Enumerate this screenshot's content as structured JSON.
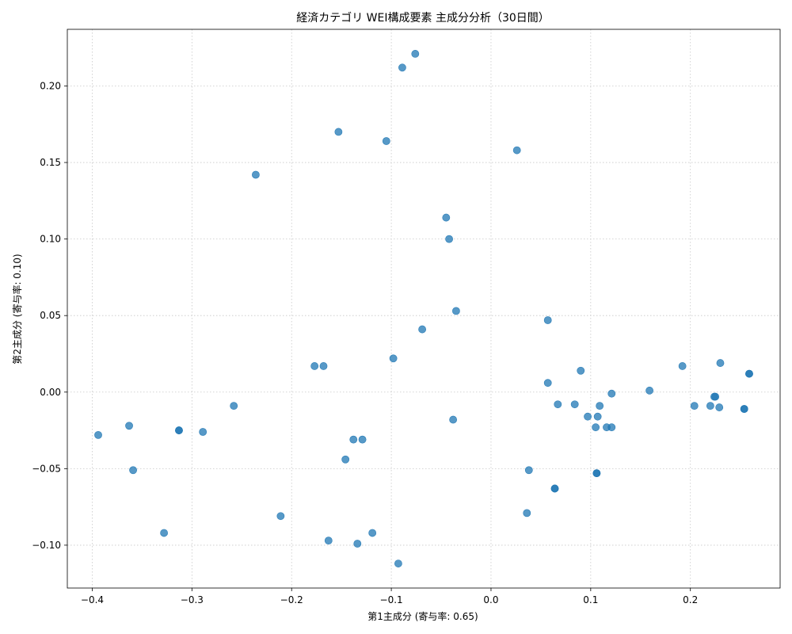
{
  "chart_data": {
    "type": "scatter",
    "title": "経済カテゴリ WEI構成要素 主成分分析（30日間）",
    "xlabel": "第1主成分 (寄与率: 0.65)",
    "ylabel": "第2主成分 (寄与率: 0.10)",
    "xlim": [
      -0.425,
      0.29
    ],
    "ylim": [
      -0.128,
      0.237
    ],
    "xticks": [
      -0.4,
      -0.3,
      -0.2,
      -0.1,
      0.0,
      0.1,
      0.2
    ],
    "xtick_labels": [
      "−0.4",
      "−0.3",
      "−0.2",
      "−0.1",
      "0.0",
      "0.1",
      "0.2"
    ],
    "yticks": [
      -0.1,
      -0.05,
      0.0,
      0.05,
      0.1,
      0.15,
      0.2
    ],
    "ytick_labels": [
      "−0.10",
      "−0.05",
      "0.00",
      "0.05",
      "0.10",
      "0.15",
      "0.20"
    ],
    "grid": true,
    "marker_color": "#1f77b4",
    "points": [
      {
        "x": -0.076,
        "y": 0.221
      },
      {
        "x": -0.089,
        "y": 0.212
      },
      {
        "x": -0.153,
        "y": 0.17
      },
      {
        "x": -0.105,
        "y": 0.164
      },
      {
        "x": 0.026,
        "y": 0.158
      },
      {
        "x": -0.236,
        "y": 0.142
      },
      {
        "x": -0.045,
        "y": 0.114
      },
      {
        "x": -0.042,
        "y": 0.1
      },
      {
        "x": -0.035,
        "y": 0.053
      },
      {
        "x": 0.057,
        "y": 0.047
      },
      {
        "x": -0.069,
        "y": 0.041
      },
      {
        "x": -0.098,
        "y": 0.022
      },
      {
        "x": -0.177,
        "y": 0.017
      },
      {
        "x": -0.168,
        "y": 0.017
      },
      {
        "x": 0.192,
        "y": 0.017
      },
      {
        "x": 0.23,
        "y": 0.019
      },
      {
        "x": 0.259,
        "y": 0.012
      },
      {
        "x": 0.259,
        "y": 0.012
      },
      {
        "x": 0.09,
        "y": 0.014
      },
      {
        "x": 0.057,
        "y": 0.006
      },
      {
        "x": 0.159,
        "y": 0.001
      },
      {
        "x": 0.121,
        "y": -0.001
      },
      {
        "x": 0.224,
        "y": -0.003
      },
      {
        "x": 0.225,
        "y": -0.003
      },
      {
        "x": 0.067,
        "y": -0.008
      },
      {
        "x": 0.084,
        "y": -0.008
      },
      {
        "x": 0.109,
        "y": -0.009
      },
      {
        "x": 0.204,
        "y": -0.009
      },
      {
        "x": 0.22,
        "y": -0.009
      },
      {
        "x": 0.229,
        "y": -0.01
      },
      {
        "x": 0.254,
        "y": -0.011
      },
      {
        "x": 0.254,
        "y": -0.011
      },
      {
        "x": -0.258,
        "y": -0.009
      },
      {
        "x": 0.097,
        "y": -0.016
      },
      {
        "x": 0.107,
        "y": -0.016
      },
      {
        "x": -0.038,
        "y": -0.018
      },
      {
        "x": 0.105,
        "y": -0.023
      },
      {
        "x": 0.116,
        "y": -0.023
      },
      {
        "x": 0.121,
        "y": -0.023
      },
      {
        "x": -0.363,
        "y": -0.022
      },
      {
        "x": -0.313,
        "y": -0.025
      },
      {
        "x": -0.313,
        "y": -0.025
      },
      {
        "x": -0.289,
        "y": -0.026
      },
      {
        "x": -0.394,
        "y": -0.028
      },
      {
        "x": -0.138,
        "y": -0.031
      },
      {
        "x": -0.129,
        "y": -0.031
      },
      {
        "x": -0.146,
        "y": -0.044
      },
      {
        "x": -0.359,
        "y": -0.051
      },
      {
        "x": 0.038,
        "y": -0.051
      },
      {
        "x": 0.106,
        "y": -0.053
      },
      {
        "x": 0.106,
        "y": -0.053
      },
      {
        "x": 0.064,
        "y": -0.063
      },
      {
        "x": 0.064,
        "y": -0.063
      },
      {
        "x": 0.036,
        "y": -0.079
      },
      {
        "x": -0.211,
        "y": -0.081
      },
      {
        "x": -0.328,
        "y": -0.092
      },
      {
        "x": -0.119,
        "y": -0.092
      },
      {
        "x": -0.163,
        "y": -0.097
      },
      {
        "x": -0.134,
        "y": -0.099
      },
      {
        "x": -0.093,
        "y": -0.112
      }
    ]
  }
}
